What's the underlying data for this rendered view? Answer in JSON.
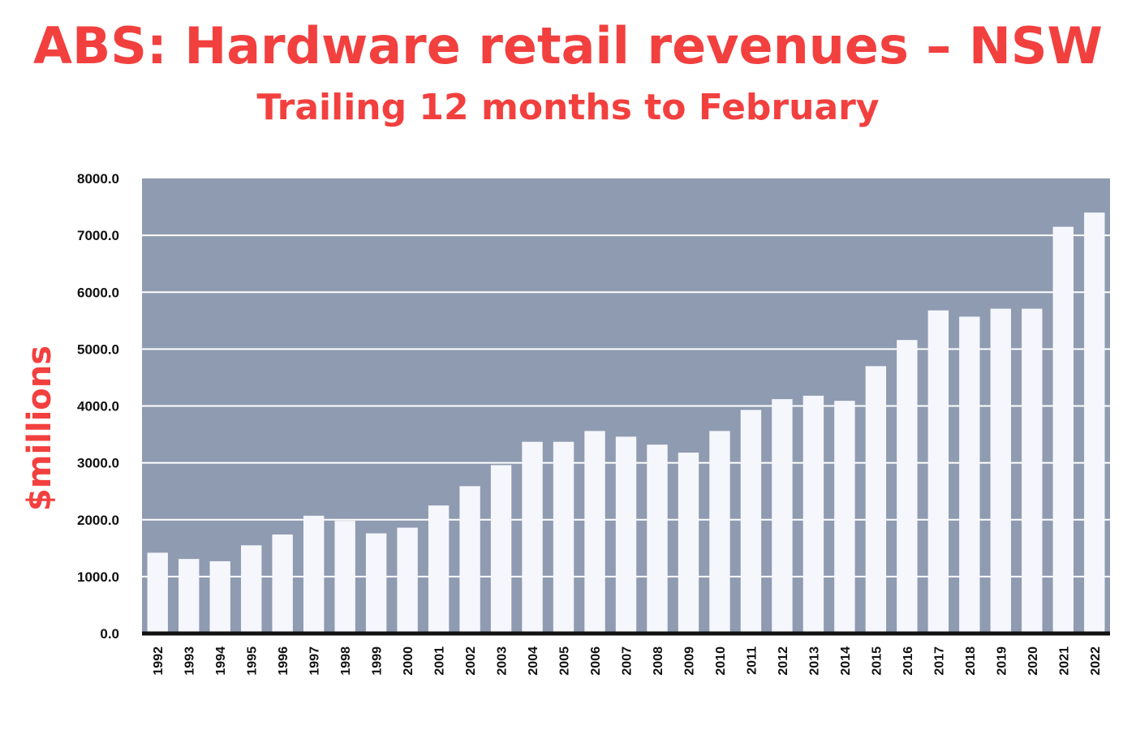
{
  "colors": {
    "title": "#f2403f",
    "plot_background": "#8f9bb0",
    "bar": "#f6f7fd",
    "gridline": "#ffffff",
    "baseline": "#111111",
    "tick_text": "#111111"
  },
  "chart_data": {
    "type": "bar",
    "title": "ABS: Hardware retail revenues – NSW",
    "subtitle": "Trailing 12 months to February",
    "xlabel": "",
    "ylabel": "$millions",
    "ylim": [
      0,
      8000
    ],
    "yticks": [
      0,
      1000,
      2000,
      3000,
      4000,
      5000,
      6000,
      7000,
      8000
    ],
    "ytick_labels": [
      "0.0",
      "1000.0",
      "2000.0",
      "3000.0",
      "4000.0",
      "5000.0",
      "6000.0",
      "7000.0",
      "8000.0"
    ],
    "grid": true,
    "legend": "none",
    "categories": [
      "1992",
      "1993",
      "1994",
      "1995",
      "1996",
      "1997",
      "1998",
      "1999",
      "2000",
      "2001",
      "2002",
      "2003",
      "2004",
      "2005",
      "2006",
      "2007",
      "2008",
      "2009",
      "2010",
      "2011",
      "2012",
      "2013",
      "2014",
      "2015",
      "2016",
      "2017",
      "2018",
      "2019",
      "2020",
      "2021",
      "2022"
    ],
    "values": [
      1420,
      1310,
      1270,
      1550,
      1740,
      2070,
      1980,
      1760,
      1860,
      2250,
      2590,
      2960,
      3370,
      3370,
      3560,
      3460,
      3320,
      3180,
      3560,
      3930,
      4120,
      4180,
      4090,
      4700,
      5160,
      5680,
      5570,
      5710,
      5710,
      7150,
      7400
    ]
  }
}
